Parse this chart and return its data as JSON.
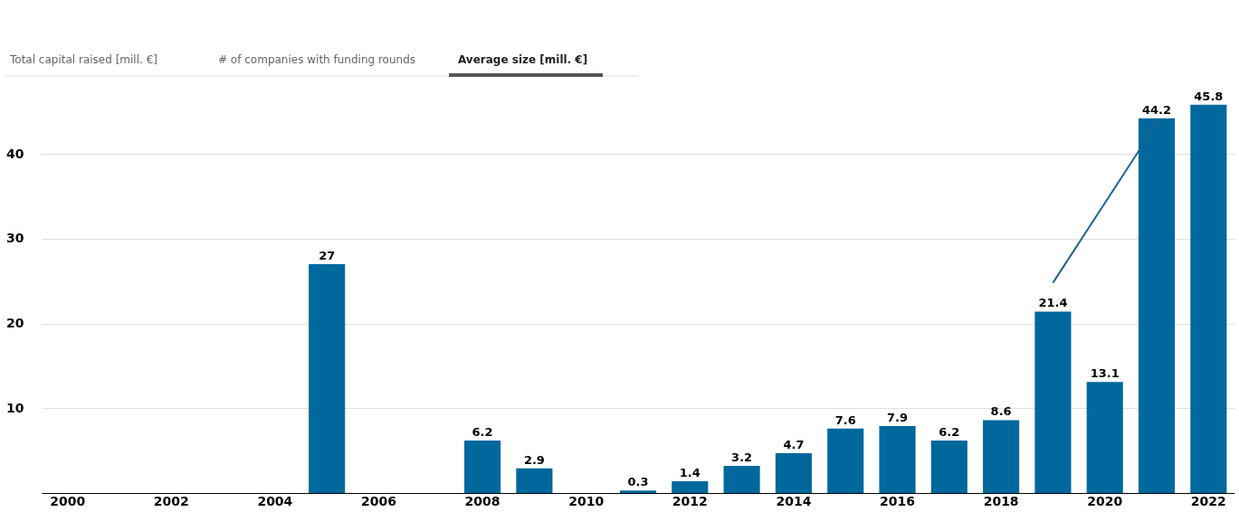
{
  "chart_data": {
    "type": "bar",
    "annotations": [
      "Total capital raised [mill. €]",
      "# of companies with funding rounds",
      "Average size [mill. €]"
    ],
    "categories": [
      "2000",
      null,
      "2002",
      null,
      "2004",
      null,
      "2006",
      null,
      "2008",
      null,
      "2010",
      null,
      "2012",
      null,
      "2014",
      null,
      "2016",
      null,
      "2018",
      null,
      "2020",
      null,
      "2022"
    ],
    "values": [
      null,
      null,
      null,
      null,
      null,
      27,
      null,
      null,
      6.2,
      2.9,
      null,
      0.3,
      1.4,
      3.2,
      4.7,
      7.6,
      7.9,
      6.2,
      8.6,
      21.4,
      13.1,
      44.2,
      45.8
    ],
    "color": "#00689d",
    "ylim": [
      0,
      46
    ],
    "yticks": [
      10,
      20,
      30,
      40
    ],
    "grid": "y",
    "data_labels": true
  }
}
